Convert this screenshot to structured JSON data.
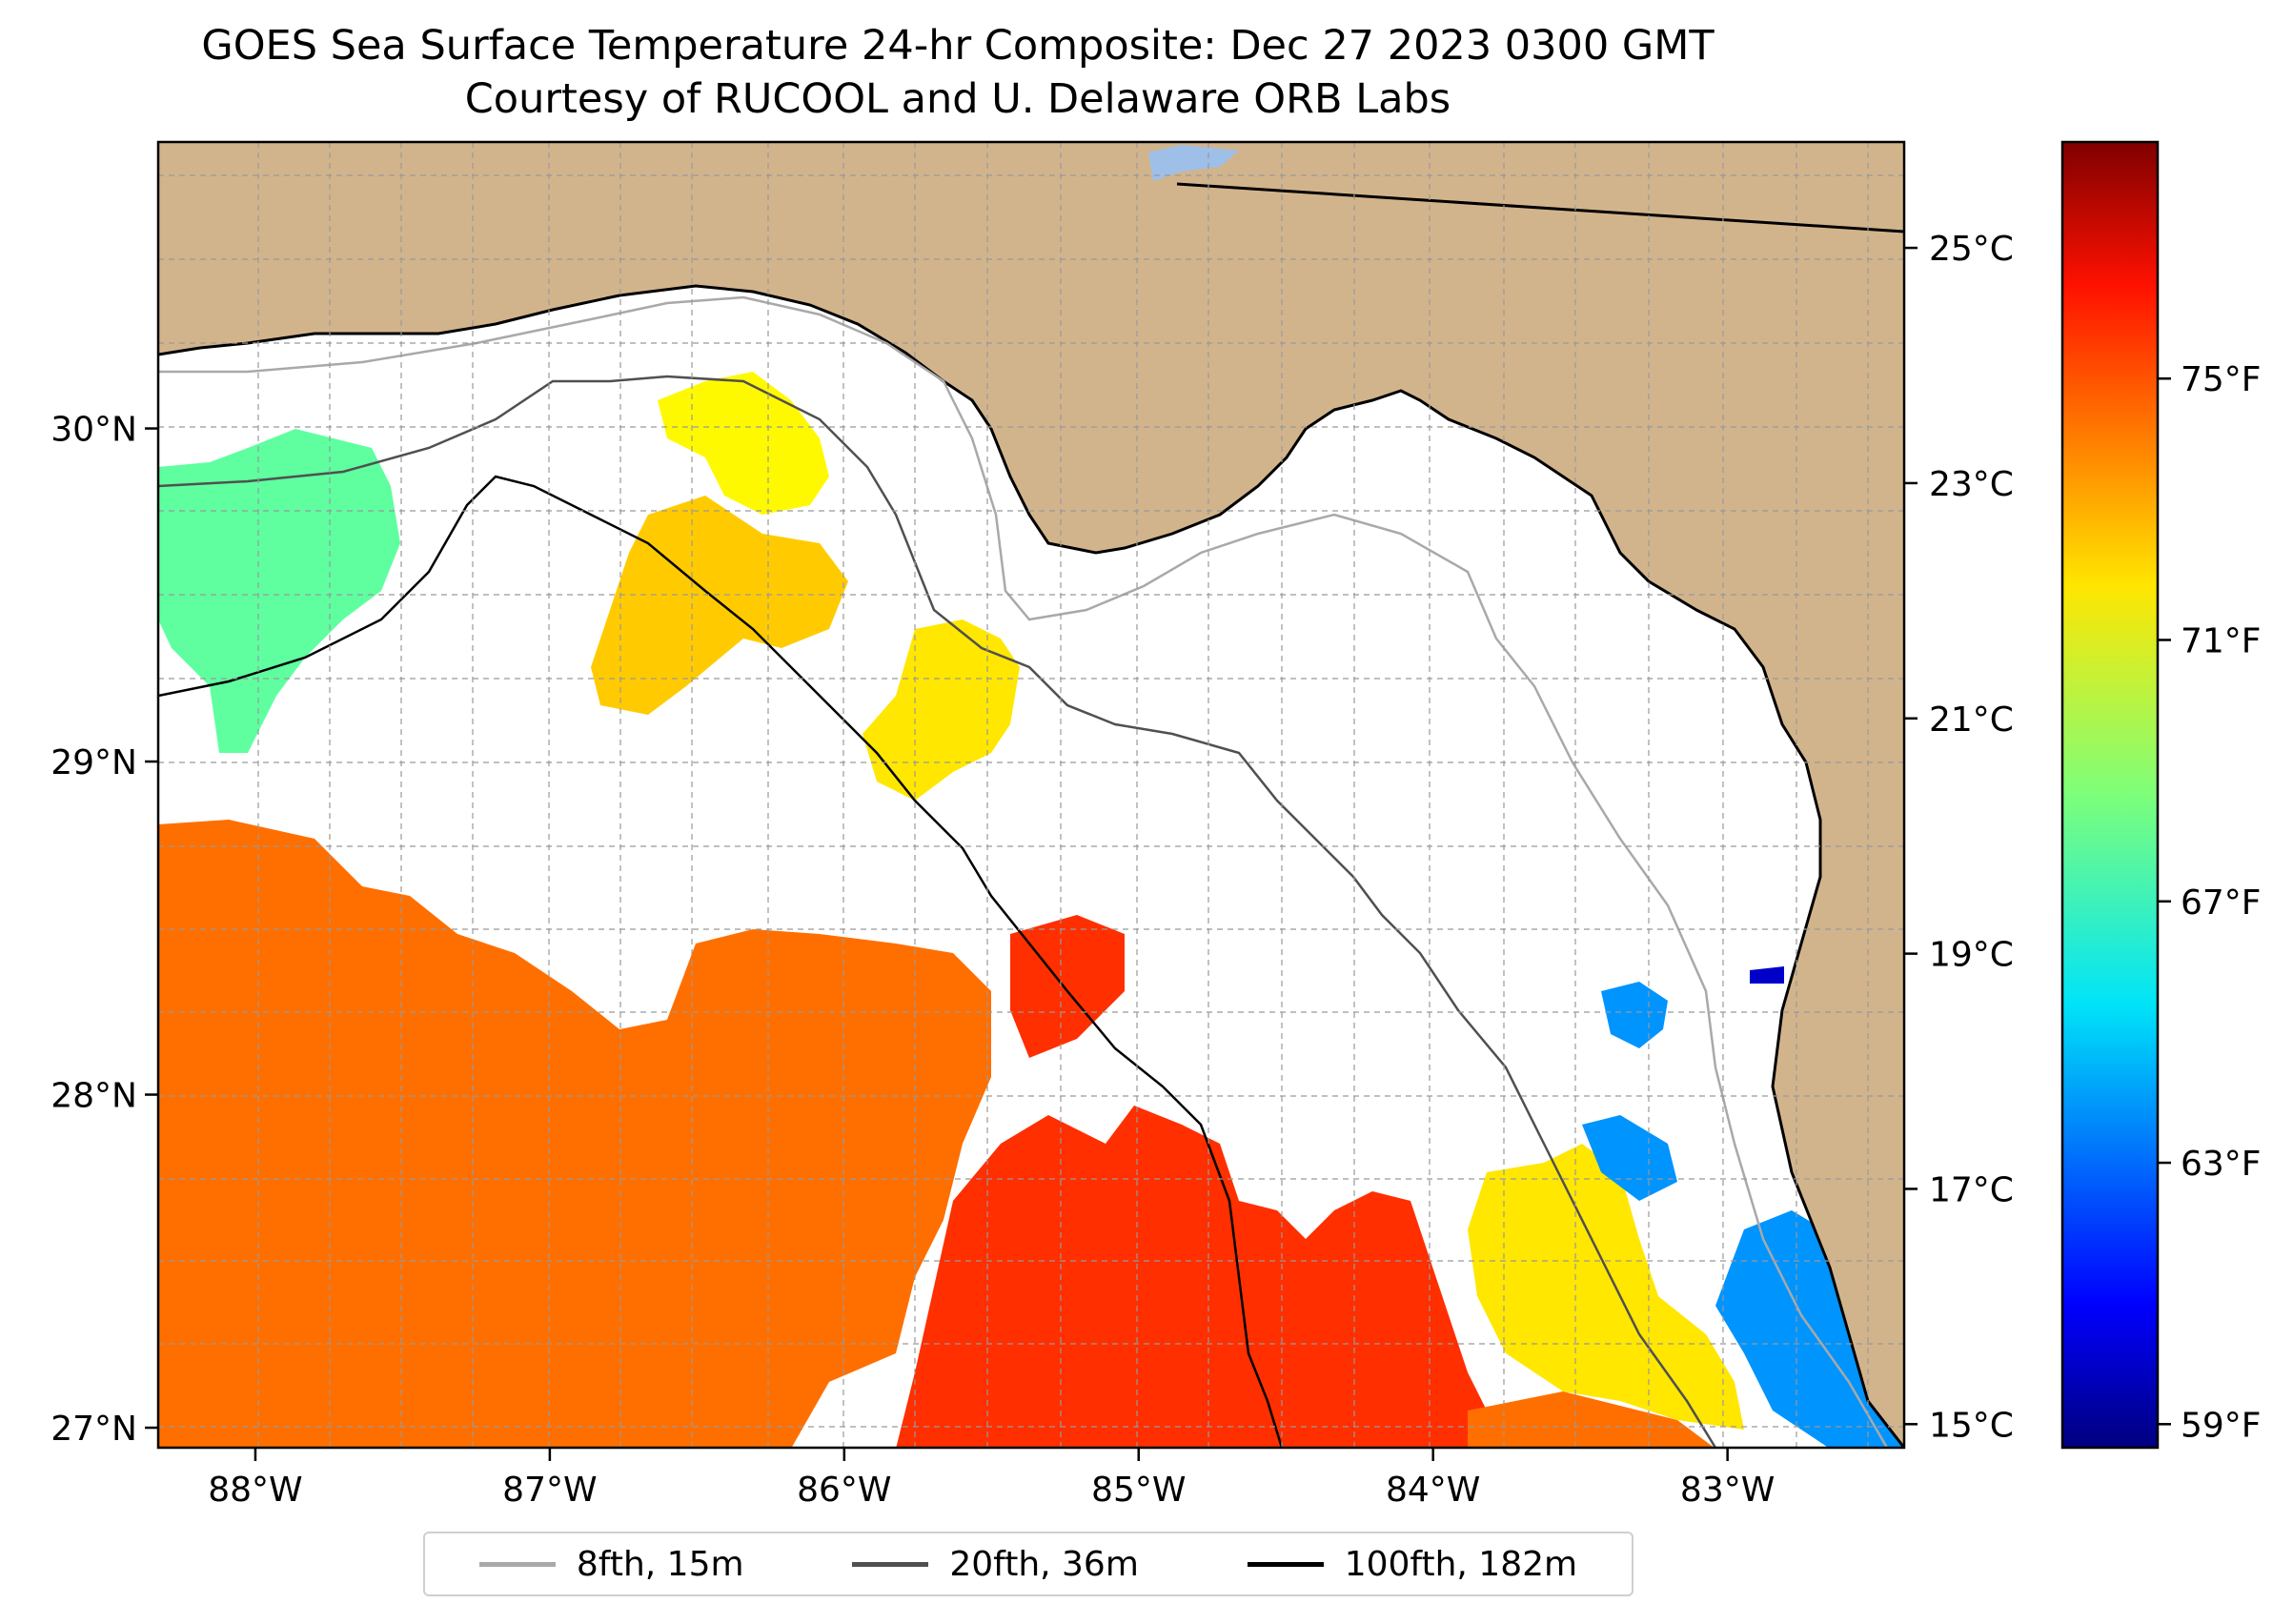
{
  "title": {
    "line1": "GOES Sea Surface Temperature 24-hr Composite: Dec 27 2023 0300 GMT",
    "line2": "Courtesy of RUCOOL and U. Delaware ORB Labs"
  },
  "map": {
    "lon_range": [
      -88.33,
      -82.4
    ],
    "lat_range": [
      26.94,
      30.86
    ],
    "lon_ticks": [
      {
        "value": -88,
        "label": "88°W"
      },
      {
        "value": -87,
        "label": "87°W"
      },
      {
        "value": -86,
        "label": "86°W"
      },
      {
        "value": -85,
        "label": "85°W"
      },
      {
        "value": -84,
        "label": "84°W"
      },
      {
        "value": -83,
        "label": "83°W"
      }
    ],
    "lat_ticks": [
      {
        "value": 27,
        "label": "27°N"
      },
      {
        "value": 28,
        "label": "28°N"
      },
      {
        "value": 29,
        "label": "29°N"
      },
      {
        "value": 30,
        "label": "30°N"
      }
    ],
    "land_color": "#D2B48C",
    "ocean_color": "#FFFFFF",
    "coastline_color": "#000000"
  },
  "colorbar": {
    "colormap": "jet",
    "celsius_range": [
      14.8,
      25.9
    ],
    "celsius_ticks": [
      {
        "value": 15,
        "label": "15°C"
      },
      {
        "value": 17,
        "label": "17°C"
      },
      {
        "value": 19,
        "label": "19°C"
      },
      {
        "value": 21,
        "label": "21°C"
      },
      {
        "value": 23,
        "label": "23°C"
      },
      {
        "value": 25,
        "label": "25°C"
      }
    ],
    "fahrenheit_ticks": [
      {
        "value": 59,
        "label": "59°F"
      },
      {
        "value": 63,
        "label": "63°F"
      },
      {
        "value": 67,
        "label": "67°F"
      },
      {
        "value": 71,
        "label": "71°F"
      },
      {
        "value": 75,
        "label": "75°F"
      }
    ]
  },
  "legend": {
    "items": [
      {
        "label": "8fth, 15m",
        "color": "#A9A9A9"
      },
      {
        "label": "20fth, 36m",
        "color": "#505050"
      },
      {
        "label": "100fth, 182m",
        "color": "#000000"
      }
    ]
  },
  "sst_regions": [
    {
      "name": "western-shelf-cool-patch",
      "temp_c": 20.0
    },
    {
      "name": "desoto-canyon-patch",
      "temp_c": 21.8
    },
    {
      "name": "central-shelf-patch",
      "temp_c": 22.3
    },
    {
      "name": "big-bend-offshore-patch",
      "temp_c": 22.0
    },
    {
      "name": "southwest-warm-water",
      "temp_c": 23.3
    },
    {
      "name": "southern-warm-core",
      "temp_c": 24.0
    },
    {
      "name": "tampa-cool-coastal",
      "temp_c": 17.8
    },
    {
      "name": "cedar-key-cold-spot",
      "temp_c": 15.6
    }
  ],
  "bathymetry": [
    {
      "name": "isobath-8fth",
      "depth_label": "8fth, 15m"
    },
    {
      "name": "isobath-20fth",
      "depth_label": "20fth, 36m"
    },
    {
      "name": "isobath-100fth",
      "depth_label": "100fth, 182m"
    }
  ]
}
